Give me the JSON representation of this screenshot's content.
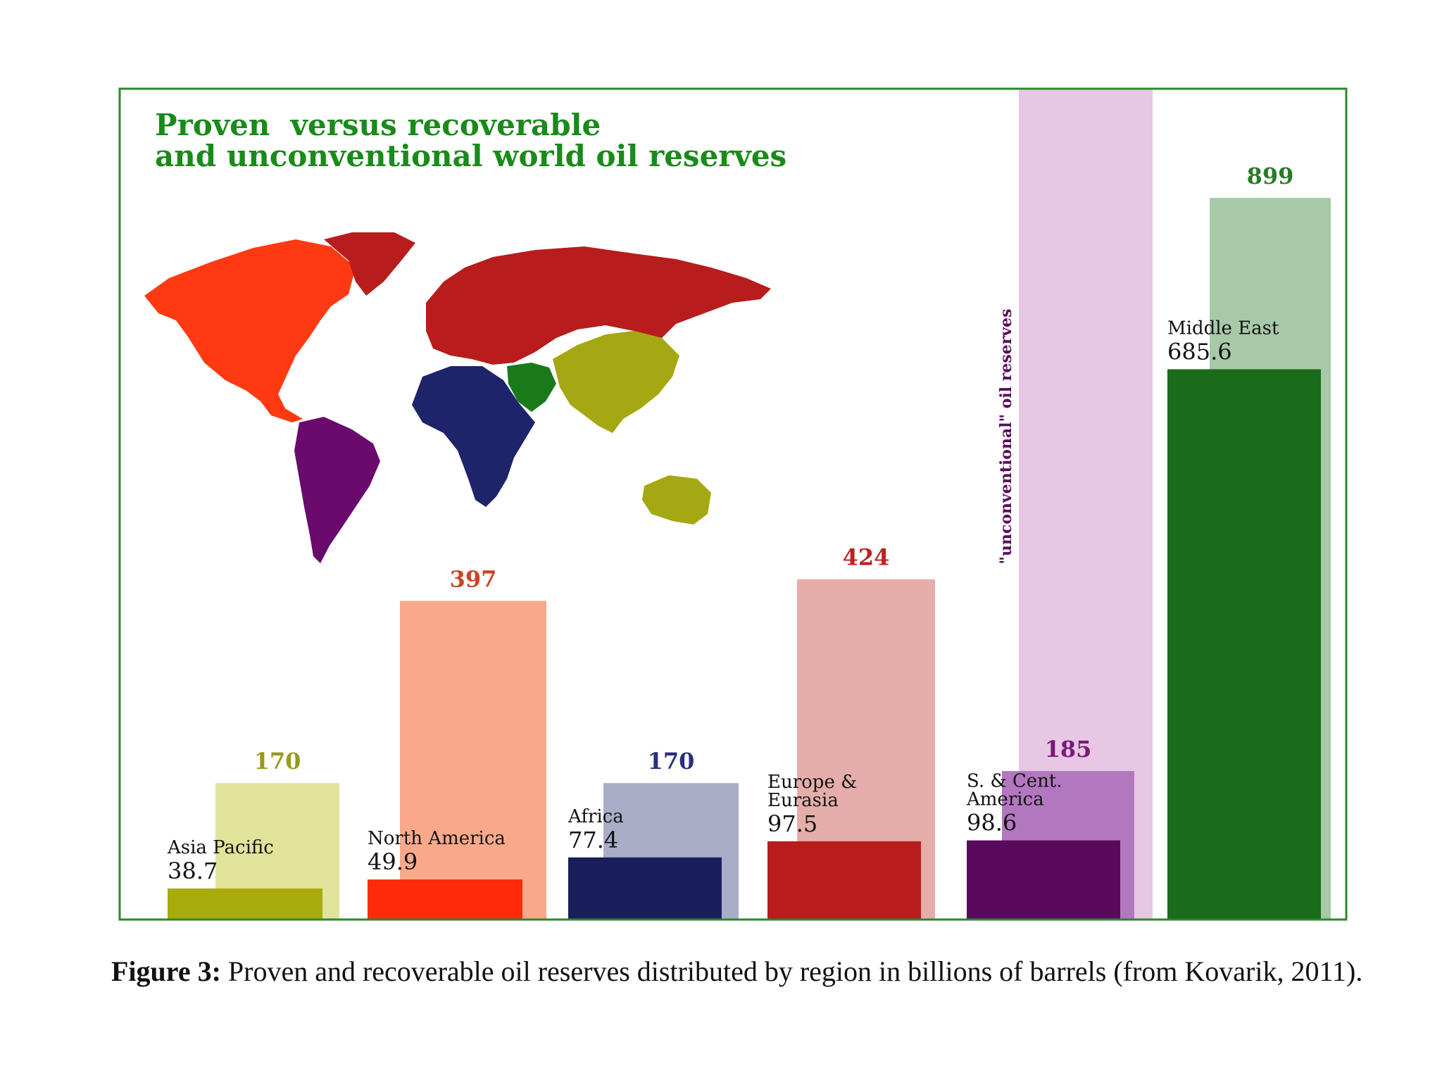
{
  "chart_data": {
    "type": "bar",
    "title_line1": "Proven  versus recoverable",
    "title_line2": "and unconventional world oil reserves",
    "unconventional_label": "\"unconventional\" oil reserves",
    "categories": [
      "Asia Pacific",
      "North America",
      "Africa",
      "Europe & Eurasia",
      "S. & Cent. America",
      "Middle East"
    ],
    "category_labels": [
      [
        "Asia Pacific"
      ],
      [
        "North America"
      ],
      [
        "Africa"
      ],
      [
        "Europe &",
        "Eurasia"
      ],
      [
        "S. & Cent.",
        "America"
      ],
      [
        "Middle East"
      ]
    ],
    "series": [
      {
        "name": "proven",
        "values": [
          38.7,
          49.9,
          77.4,
          97.5,
          98.6,
          685.6
        ],
        "labels": [
          "38.7",
          "49.9",
          "77.4",
          "97.5",
          "98.6",
          "685.6"
        ]
      },
      {
        "name": "recoverable",
        "values": [
          170,
          397,
          170,
          424,
          185,
          899
        ],
        "labels": [
          "170",
          "397",
          "170",
          "424",
          "185",
          "899"
        ]
      }
    ],
    "colors": {
      "proven": [
        "#a9ab0c",
        "#ff2a0a",
        "#1a1f5c",
        "#b81c1c",
        "#5a0a5c",
        "#1a6b1a"
      ],
      "recoverable": [
        "#e2e39a",
        "#f9a98a",
        "#a9adc8",
        "#e5aeab",
        "#b377c0",
        "#a8c9a8"
      ],
      "recoverable_label": [
        "#9a9a1a",
        "#cc4422",
        "#2a2f7c",
        "#bb2222",
        "#7a1a7a",
        "#2a7a2a"
      ],
      "unconventional_band": "#e8c7e4",
      "frame": "#2a8a2a",
      "title": "#1a8a1a"
    },
    "ylim": [
      0,
      950
    ],
    "xlabel": "",
    "ylabel": ""
  },
  "map": {
    "regions": [
      "north-america",
      "south-america",
      "europe-eurasia",
      "africa",
      "middle-east",
      "asia-pacific"
    ],
    "colors": {
      "north-america": "#ff3a12",
      "south-america": "#6a0a6c",
      "europe-eurasia": "#b81c1c",
      "africa": "#1e246a",
      "middle-east": "#1a7a1a",
      "asia-pacific": "#a5a812"
    }
  },
  "caption": {
    "label": "Figure 3:",
    "text": " Proven and recoverable oil reserves distributed by region in billions of barrels (from Kovarik, 2011)."
  }
}
